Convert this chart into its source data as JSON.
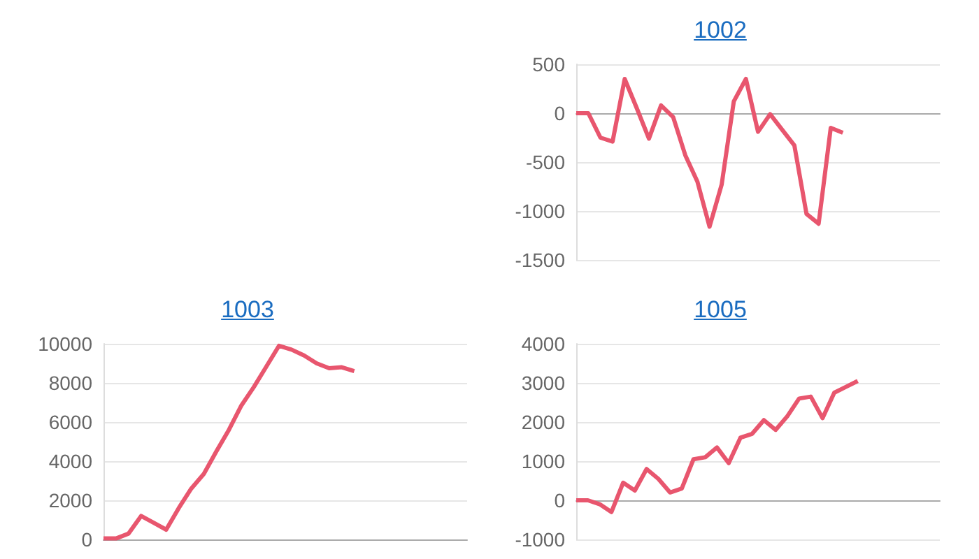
{
  "chart_data": [
    {
      "type": "line",
      "title": "1002",
      "color": "#e8566e",
      "grid": "y",
      "tick_labels": "y",
      "ylim": [
        -1500,
        500
      ],
      "yticks": [
        -1500,
        -1000,
        -500,
        0,
        500
      ],
      "categories": [
        null,
        null,
        null,
        null,
        null,
        null,
        null,
        null,
        null,
        null,
        null,
        null,
        null,
        null,
        null,
        null,
        null,
        null,
        null,
        null,
        null,
        null,
        null,
        null,
        null,
        null,
        null,
        null,
        null,
        null,
        null
      ],
      "values": [
        0,
        0,
        -250,
        -290,
        350,
        50,
        -260,
        80,
        -40,
        -430,
        -700,
        -1160,
        -730,
        120,
        350,
        -190,
        -10,
        -170,
        -330,
        -1030,
        -1130,
        -150,
        -200,
        null,
        null,
        null,
        null,
        null,
        null,
        null,
        null
      ]
    },
    {
      "type": "line",
      "title": "1003",
      "color": "#e8566e",
      "grid": "y",
      "tick_labels": "y",
      "ylim": [
        0,
        10000
      ],
      "yticks": [
        0,
        2000,
        4000,
        6000,
        8000,
        10000
      ],
      "categories": [
        null,
        null,
        null,
        null,
        null,
        null,
        null,
        null,
        null,
        null,
        null,
        null,
        null,
        null,
        null,
        null,
        null,
        null,
        null,
        null,
        null,
        null,
        null,
        null,
        null,
        null,
        null,
        null,
        null,
        null
      ],
      "values": [
        50,
        50,
        300,
        1200,
        850,
        500,
        1600,
        2600,
        3350,
        4500,
        5600,
        6850,
        7800,
        8850,
        9900,
        9700,
        9400,
        9000,
        8750,
        8800,
        8600,
        null,
        null,
        null,
        null,
        null,
        null,
        null,
        null,
        null
      ]
    },
    {
      "type": "line",
      "title": "1005",
      "color": "#e8566e",
      "grid": "y",
      "tick_labels": "y",
      "ylim": [
        -1000,
        4000
      ],
      "yticks": [
        -1000,
        0,
        1000,
        2000,
        3000,
        4000
      ],
      "categories": [
        null,
        null,
        null,
        null,
        null,
        null,
        null,
        null,
        null,
        null,
        null,
        null,
        null,
        null,
        null,
        null,
        null,
        null,
        null,
        null,
        null,
        null,
        null,
        null,
        null,
        null,
        null,
        null,
        null,
        null,
        null,
        null
      ],
      "values": [
        0,
        0,
        -100,
        -300,
        450,
        250,
        800,
        550,
        200,
        300,
        1050,
        1100,
        1350,
        950,
        1600,
        1700,
        2050,
        1800,
        2150,
        2600,
        2650,
        2100,
        2750,
        2900,
        3050,
        null,
        null,
        null,
        null,
        null,
        null,
        null
      ]
    }
  ]
}
